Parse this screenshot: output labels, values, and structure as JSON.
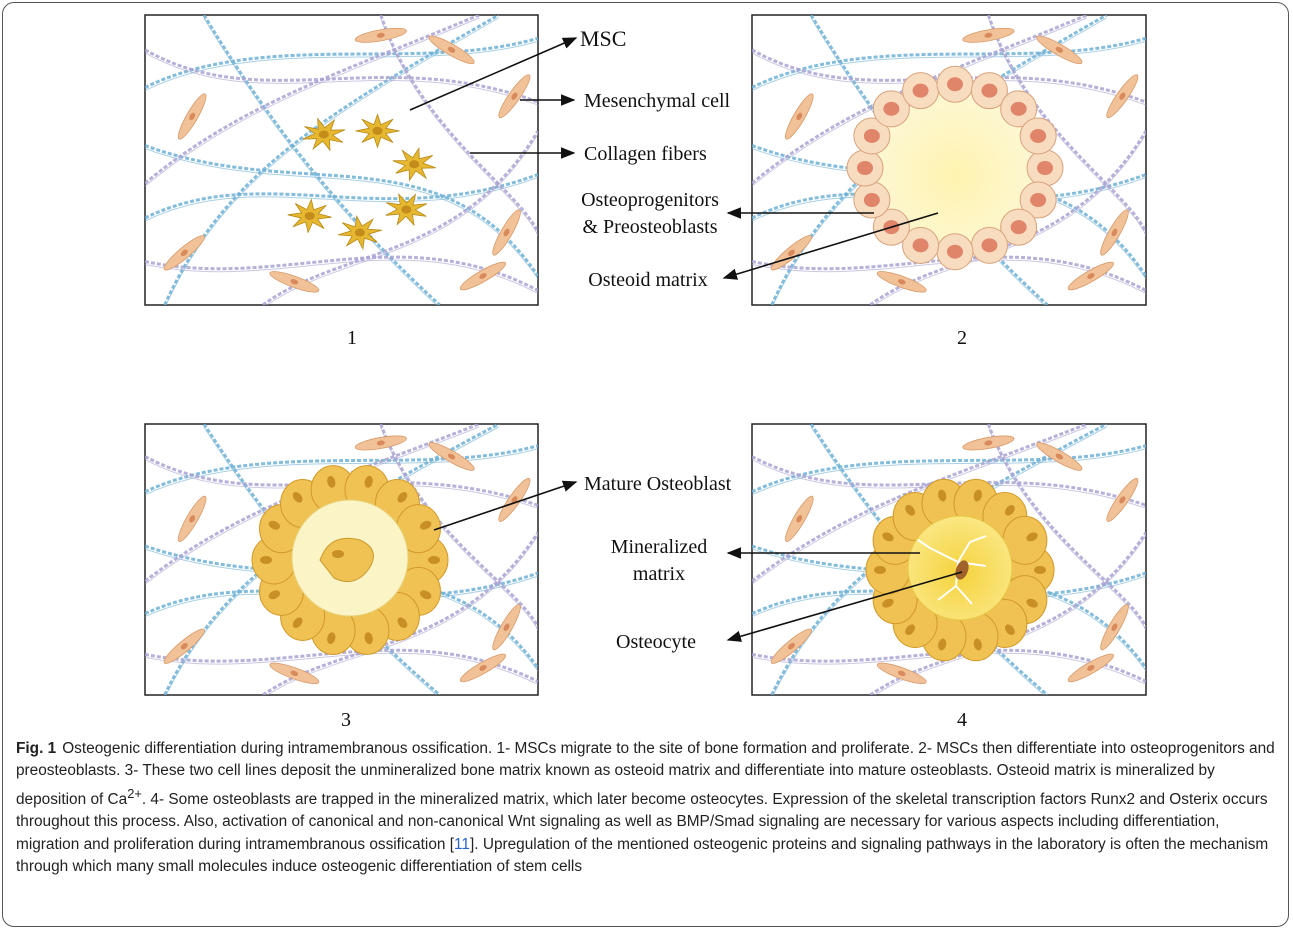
{
  "panels": [
    {
      "number": "1"
    },
    {
      "number": "2"
    },
    {
      "number": "3"
    },
    {
      "number": "4"
    }
  ],
  "labels": {
    "msc": "MSC",
    "mesenchymal_cell": "Mesenchymal cell",
    "collagen_fibers": "Collagen fibers",
    "osteoprogenitors_line1": "Osteoprogenitors",
    "osteoprogenitors_line2": "& Preosteoblasts",
    "osteoid_matrix": "Osteoid matrix",
    "mature_osteoblast": "Mature Osteoblast",
    "mineralized_line1": "Mineralized",
    "mineralized_line2": "matrix",
    "osteocyte": "Osteocyte"
  },
  "colors": {
    "collagen_blue": "#6fb0d6",
    "collagen_purple": "#a9a3d2",
    "mesenchymal_cell": "#f1c197",
    "msc": "#e6b730",
    "osteoprogenitor_cell": "#f7dcc0",
    "osteoprogenitor_nucleus": "#e0846a",
    "osteoid": "#fbf6bf",
    "osteoblast": "#f0c254",
    "mineralized": "#f7dd57",
    "reference_link": "#2a62c9"
  },
  "caption": {
    "figure_label": "Fig. 1",
    "text_before_superscript": "Osteogenic differentiation during intramembranous ossification. 1- MSCs migrate to the site of bone formation and proliferate. 2- MSCs then differentiate into osteoprogenitors and preosteoblasts. 3- These two cell lines deposit the unmineralized bone matrix known as osteoid matrix and differentiate into mature osteoblasts. Osteoid matrix is mineralized by deposition of Ca",
    "superscript": "2+",
    "text_after_superscript": ". 4- Some osteoblasts are trapped in the mineralized matrix, which later become osteocytes. Expression of the skeletal transcription factors Runx2 and Osterix occurs throughout this process. Also, activation of canonical and non-canonical Wnt signaling as well as BMP/Smad signaling are necessary for various aspects including differentiation, migration and proliferation during intramembranous ossification [",
    "reference": "11",
    "text_after_reference": "]. Upregulation of the mentioned osteogenic proteins and signaling pathways in the laboratory is often the mechanism through which many small molecules induce osteogenic differentiation of stem cells"
  }
}
